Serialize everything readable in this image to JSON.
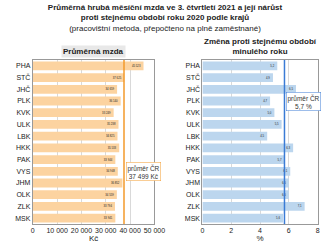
{
  "title": "Průměrná hrubá měsíční mzda ve 3. čtvrtletí 2021 a její nárůst",
  "title_line2": "proti stejnému období roku 2020 podle krajů",
  "subtitle": "(pracovištní metoda, přepočteno na plně zaměstnané)",
  "chart_data": [
    {
      "type": "bar",
      "orientation": "horizontal",
      "title": [
        "Průměrná mzda"
      ],
      "categories": [
        "PHA",
        "STČ",
        "JHČ",
        "PLK",
        "KVK",
        "ULK",
        "LBK",
        "HKK",
        "PAK",
        "VYS",
        "JHM",
        "OLK",
        "ZLK",
        "MSK"
      ],
      "values": [
        45523,
        37625,
        34659,
        36140,
        33249,
        35238,
        34825,
        35533,
        33944,
        34948,
        36852,
        34559,
        33794,
        33941
      ],
      "value_labels": [
        "45 523",
        "37 625",
        "34 659",
        "36 140",
        "33 249",
        "35 238",
        "34 825",
        "35 533",
        "33 944",
        "34 948",
        "36 852",
        "34 559",
        "33 794",
        "33 941"
      ],
      "data_labels": true,
      "color": "#fcd3a0",
      "xlim": [
        0,
        50000
      ],
      "xticks": [
        0,
        {
          "value": 10000,
          "label": "10 000"
        },
        {
          "value": 20000,
          "label": "20 000"
        },
        {
          "value": 30000,
          "label": "30 000"
        },
        {
          "value": 40000,
          "label": "40 000"
        },
        {
          "value": 50000,
          "label": "50 000"
        }
      ],
      "x_label": "Kč",
      "grid": true,
      "reference_line": {
        "value": 37499,
        "label": [
          "průměr ČR",
          "37 499 Kč"
        ],
        "color": "#f39a2b"
      }
    },
    {
      "type": "bar",
      "orientation": "horizontal",
      "title": [
        "Změna proti stejnému období",
        "minulého roku"
      ],
      "categories": [
        "PHA",
        "STČ",
        "JHČ",
        "PLK",
        "KVK",
        "ULK",
        "LBK",
        "HKK",
        "PAK",
        "VYS",
        "JHM",
        "OLK",
        "ZLK",
        "MSK"
      ],
      "values": [
        5.2,
        4.9,
        6.5,
        4.7,
        5.0,
        5.5,
        4.5,
        6.3,
        5.7,
        6.1,
        6.0,
        6.0,
        7.1,
        5.6
      ],
      "value_labels": [
        "5,2",
        "4,9",
        "6,5",
        "4,7",
        "5,0",
        "5,5",
        "4,5",
        "6,3",
        "5,7",
        "6,1",
        "6,0",
        "6,0",
        "7,1",
        "5,6"
      ],
      "data_labels": true,
      "color": "#bcd6ee",
      "xlim": [
        0,
        8
      ],
      "xticks": [
        0,
        2,
        4,
        6,
        8
      ],
      "x_label": "%",
      "grid": true,
      "reference_line": {
        "value": 5.7,
        "label": [
          "průměr ČR",
          "5,7 %"
        ],
        "color": "#3a7bd5"
      }
    }
  ]
}
